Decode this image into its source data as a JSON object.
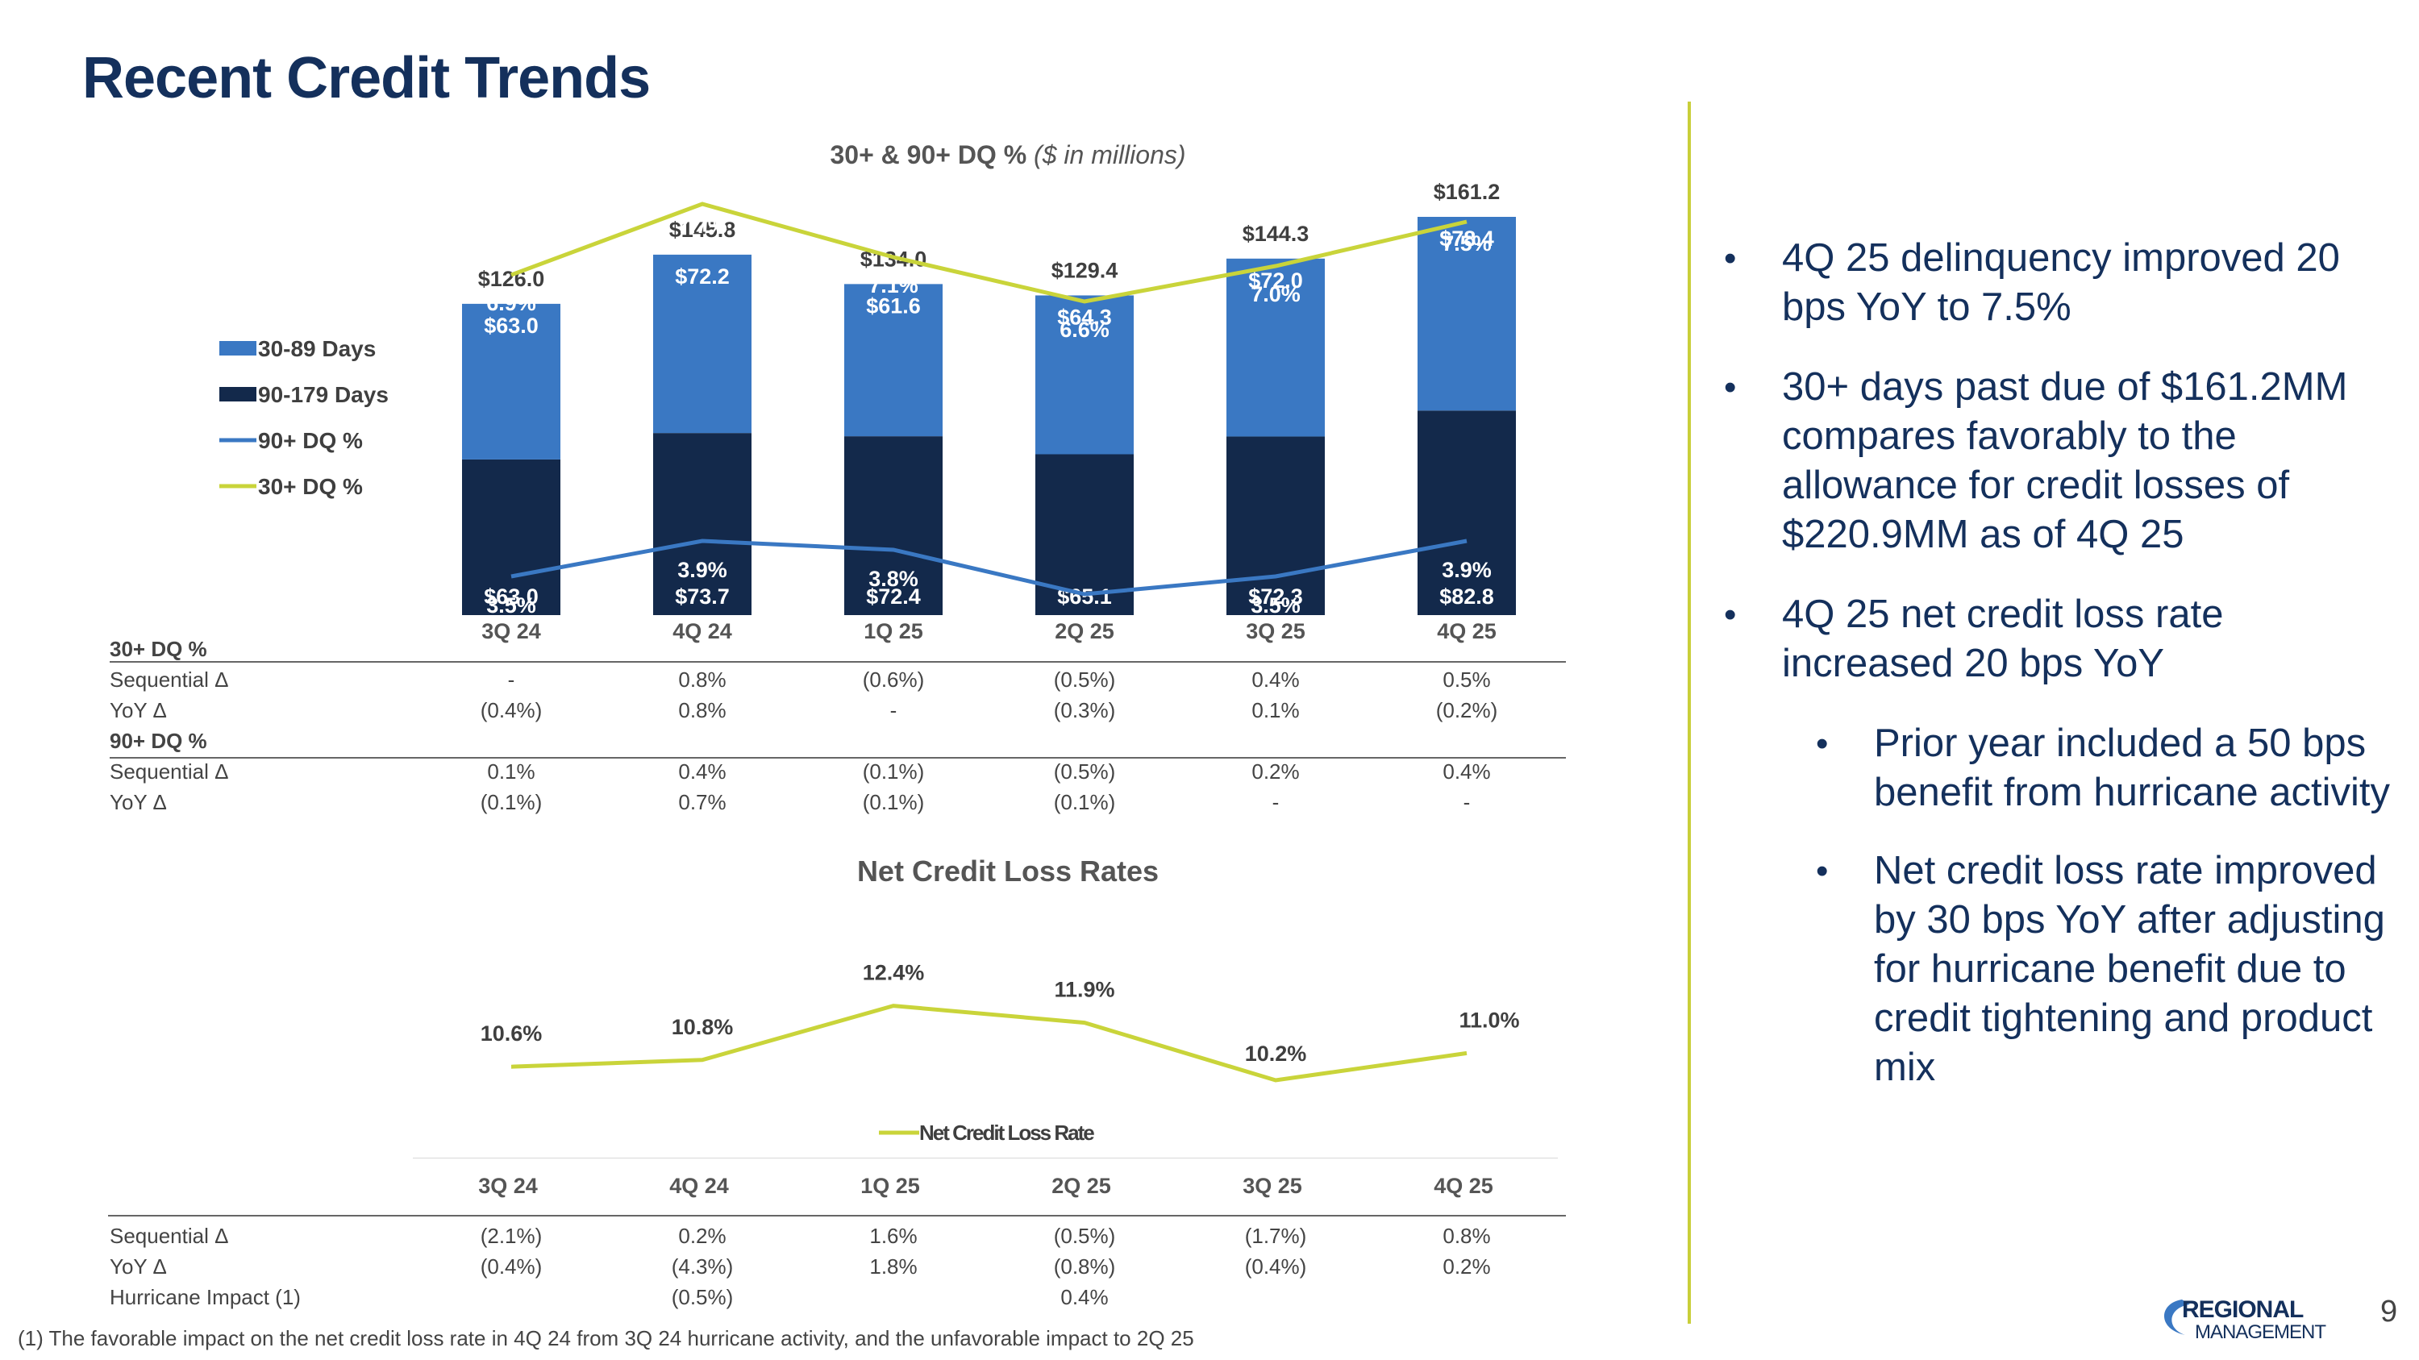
{
  "page": {
    "title": "Recent Credit Trends",
    "page_number": "9",
    "footnote": "(1) The favorable impact on the net credit loss rate in 4Q 24 from 3Q 24 hurricane activity, and the unfavorable impact to 2Q 25"
  },
  "logo": {
    "line1": "REGIONAL",
    "line2": "MANAGEMENT"
  },
  "colors": {
    "navy": "#14305c",
    "blue": "#3a78c3",
    "dark": "#13294b",
    "green": "#c9d43a",
    "line_blue": "#3a78c3"
  },
  "bullets": [
    {
      "text": "4Q 25 delinquency improved 20 bps YoY to 7.5%",
      "level": 1
    },
    {
      "text": "30+ days past due of $161.2MM compares favorably to the allowance for credit losses of $220.9MM as of 4Q 25",
      "level": 1
    },
    {
      "text": "4Q 25 net credit loss rate increased 20 bps YoY",
      "level": 1
    },
    {
      "text": "Prior year included a 50 bps benefit from hurricane activity",
      "level": 2
    },
    {
      "text": "Net credit loss rate improved by 30 bps YoY after adjusting for hurricane benefit due to credit tightening and product mix",
      "level": 2
    }
  ],
  "chart_data": [
    {
      "type": "bar",
      "stacked": true,
      "title": "30+ & 90+ DQ %",
      "subtitle": "($ in millions)",
      "categories": [
        "3Q 24",
        "4Q 24",
        "1Q 25",
        "2Q 25",
        "3Q 25",
        "4Q 25"
      ],
      "series": [
        {
          "name": "90-179 Days",
          "values": [
            63.0,
            73.7,
            72.4,
            65.1,
            72.3,
            82.8
          ],
          "labels": [
            "$63.0",
            "$73.7",
            "$72.4",
            "$65.1",
            "$72.3",
            "$82.8"
          ]
        },
        {
          "name": "30-89 Days",
          "values": [
            63.0,
            72.2,
            61.6,
            64.3,
            72.0,
            78.4
          ],
          "labels": [
            "$63.0",
            "$72.2",
            "$61.6",
            "$64.3",
            "$72.0",
            "$78.4"
          ]
        }
      ],
      "totals": [
        "$126.0",
        "$145.8",
        "$134.0",
        "$129.4",
        "$144.3",
        "$161.2"
      ],
      "lines": [
        {
          "name": "90+ DQ %",
          "values": [
            3.5,
            3.9,
            3.8,
            3.3,
            3.5,
            3.9
          ],
          "labels": [
            "3.5%",
            "3.9%",
            "3.8%",
            "3.3%",
            "3.5%",
            "3.9%"
          ]
        },
        {
          "name": "30+ DQ %",
          "values": [
            6.9,
            7.7,
            7.1,
            6.6,
            7.0,
            7.5
          ],
          "labels": [
            "6.9%",
            "7.7%",
            "7.1%",
            "6.6%",
            "7.0%",
            "7.5%"
          ]
        }
      ],
      "legend": [
        "30-89 Days",
        "90-179 Days",
        "90+ DQ %",
        "30+ DQ %"
      ],
      "legend_position": "left",
      "ylim": [
        0,
        170
      ]
    },
    {
      "type": "line",
      "title": "Net Credit Loss Rates",
      "categories": [
        "3Q 24",
        "4Q 24",
        "1Q 25",
        "2Q 25",
        "3Q 25",
        "4Q 25"
      ],
      "series": [
        {
          "name": "Net Credit Loss Rate",
          "values": [
            10.6,
            10.8,
            12.4,
            11.9,
            10.2,
            11.0
          ],
          "labels": [
            "10.6%",
            "10.8%",
            "12.4%",
            "11.9%",
            "10.2%",
            "11.0%"
          ]
        }
      ],
      "legend_position": "bottom",
      "ylim": [
        9,
        13
      ]
    }
  ],
  "dq_table": [
    {
      "label": "30+ DQ %",
      "bold": true,
      "values": [
        "",
        "",
        "",
        "",
        "",
        ""
      ]
    },
    {
      "label": "Sequential Δ",
      "bold": false,
      "values": [
        "-",
        "0.8%",
        "(0.6%)",
        "(0.5%)",
        "0.4%",
        "0.5%"
      ]
    },
    {
      "label": "YoY Δ",
      "bold": false,
      "values": [
        "(0.4%)",
        "0.8%",
        "-",
        "(0.3%)",
        "0.1%",
        "(0.2%)"
      ]
    },
    {
      "label": "90+ DQ %",
      "bold": true,
      "values": [
        "",
        "",
        "",
        "",
        "",
        ""
      ]
    },
    {
      "label": "Sequential Δ",
      "bold": false,
      "values": [
        "0.1%",
        "0.4%",
        "(0.1%)",
        "(0.5%)",
        "0.2%",
        "0.4%"
      ]
    },
    {
      "label": "YoY Δ",
      "bold": false,
      "values": [
        "(0.1%)",
        "0.7%",
        "(0.1%)",
        "(0.1%)",
        "-",
        "-"
      ]
    }
  ],
  "ncl_table": [
    {
      "label": "Sequential Δ",
      "bold": false,
      "values": [
        "(2.1%)",
        "0.2%",
        "1.6%",
        "(0.5%)",
        "(1.7%)",
        "0.8%"
      ]
    },
    {
      "label": "YoY Δ",
      "bold": false,
      "values": [
        "(0.4%)",
        "(4.3%)",
        "1.8%",
        "(0.8%)",
        "(0.4%)",
        "0.2%"
      ]
    },
    {
      "label": "Hurricane Impact (1)",
      "bold": false,
      "values": [
        "",
        "(0.5%)",
        "",
        "0.4%",
        "",
        ""
      ]
    }
  ]
}
